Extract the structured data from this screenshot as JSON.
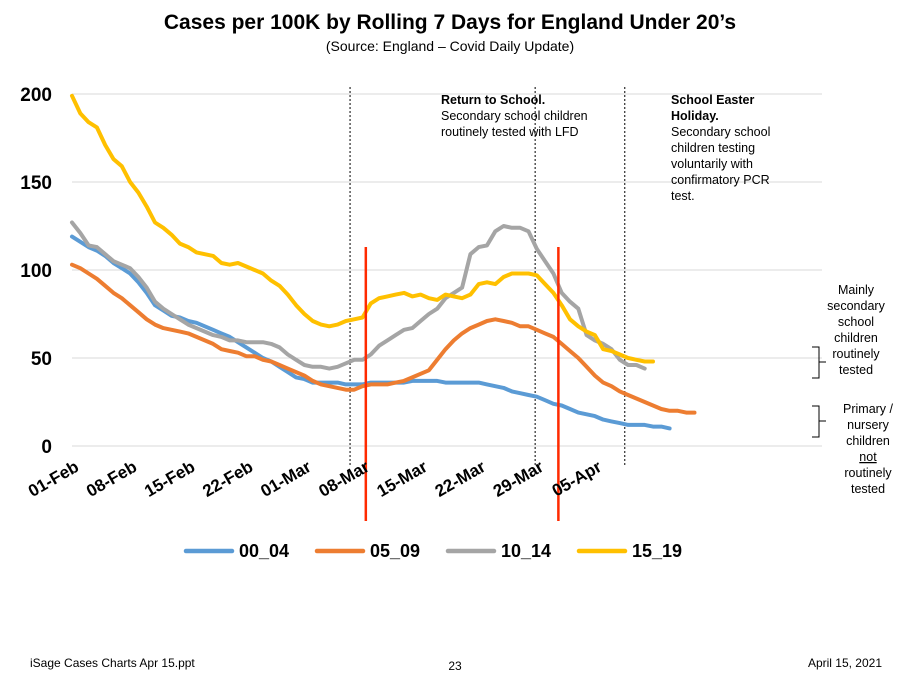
{
  "title": "Cases per 100K by Rolling 7 Days for England Under 20’s",
  "subtitle": "(Source: England – Covid Daily Update)",
  "footer": {
    "left": "iSage  Cases Charts Apr 15.ppt",
    "center": "23",
    "right": "April 15, 2021"
  },
  "annotations": {
    "school_return": {
      "lines": [
        "Return to School.",
        "Secondary school children",
        "routinely tested with LFD"
      ]
    },
    "easter": {
      "lines": [
        "School Easter",
        "Holiday.",
        "Secondary school",
        "children testing",
        "voluntarily with",
        "confirmatory PCR",
        "test."
      ]
    },
    "secondary_note": [
      "Mainly",
      "secondary",
      "school",
      "children",
      "routinely",
      "tested"
    ],
    "primary_note": [
      "Primary /",
      "nursery",
      "children",
      "not",
      "routinely",
      "tested"
    ]
  },
  "colors": {
    "00_04": "#5B9BD5",
    "05_09": "#ED7D31",
    "10_14": "#A5A5A5",
    "15_19": "#FFC000",
    "event_line": "#FF2A00"
  },
  "chart_data": {
    "type": "line",
    "title": "Cases per 100K by Rolling 7 Days for England Under 20’s",
    "xlabel": "",
    "ylabel": "",
    "ylim": [
      0,
      200
    ],
    "yticks": [
      "0",
      "50",
      "100",
      "150",
      "200"
    ],
    "xticks": [
      {
        "label": "01-Feb",
        "day": 0
      },
      {
        "label": "08-Feb",
        "day": 7
      },
      {
        "label": "15-Feb",
        "day": 14
      },
      {
        "label": "22-Feb",
        "day": 21
      },
      {
        "label": "01-Mar",
        "day": 28
      },
      {
        "label": "08-Mar",
        "day": 35
      },
      {
        "label": "15-Mar",
        "day": 42
      },
      {
        "label": "22-Mar",
        "day": 49
      },
      {
        "label": "29-Mar",
        "day": 56
      },
      {
        "label": "05-Apr",
        "day": 63
      }
    ],
    "x_start": "01-Feb",
    "x_end": "10-Apr",
    "grid": "horizontal",
    "legend_position": "bottom",
    "series": [
      {
        "name": "00_04",
        "values": [
          119,
          116,
          113,
          111,
          108,
          104,
          101,
          98,
          93,
          87,
          80,
          77,
          74,
          73,
          71,
          70,
          68,
          66,
          64,
          62,
          59,
          56,
          53,
          50,
          48,
          45,
          42,
          39,
          38,
          36,
          36,
          36,
          36,
          35,
          35,
          35,
          36,
          36,
          36,
          36,
          36,
          37,
          37,
          37,
          37,
          36,
          36,
          36,
          36,
          36,
          35,
          34,
          33,
          31,
          30,
          29,
          28,
          26,
          24,
          23,
          21,
          19,
          18,
          17,
          15,
          14,
          13,
          12,
          12,
          12,
          11,
          11,
          10
        ]
      },
      {
        "name": "05_09",
        "values": [
          103,
          101,
          98,
          95,
          91,
          87,
          84,
          80,
          76,
          72,
          69,
          67,
          66,
          65,
          64,
          62,
          60,
          58,
          55,
          54,
          53,
          51,
          51,
          49,
          48,
          46,
          44,
          42,
          40,
          37,
          35,
          34,
          33,
          32,
          32,
          34,
          35,
          35,
          35,
          36,
          37,
          39,
          41,
          43,
          49,
          55,
          60,
          64,
          67,
          69,
          71,
          72,
          71,
          70,
          68,
          68,
          66,
          64,
          62,
          58,
          54,
          50,
          45,
          40,
          36,
          34,
          31,
          29,
          27,
          25,
          23,
          21,
          20,
          20,
          19,
          19
        ]
      },
      {
        "name": "10_14",
        "values": [
          127,
          121,
          114,
          113,
          109,
          105,
          103,
          101,
          96,
          90,
          82,
          78,
          75,
          72,
          69,
          67,
          65,
          63,
          62,
          60,
          60,
          59,
          59,
          59,
          58,
          56,
          52,
          49,
          46,
          45,
          45,
          44,
          45,
          47,
          49,
          49,
          52,
          57,
          60,
          63,
          66,
          67,
          71,
          75,
          78,
          84,
          87,
          90,
          109,
          113,
          114,
          122,
          125,
          124,
          124,
          122,
          112,
          105,
          98,
          87,
          82,
          78,
          63,
          60,
          58,
          55,
          49,
          46,
          46,
          44
        ]
      },
      {
        "name": "15_19",
        "values": [
          199,
          189,
          184,
          181,
          171,
          163,
          159,
          150,
          144,
          136,
          127,
          124,
          120,
          115,
          113,
          110,
          109,
          108,
          104,
          103,
          104,
          102,
          100,
          98,
          94,
          91,
          86,
          80,
          75,
          71,
          69,
          68,
          69,
          71,
          72,
          73,
          81,
          84,
          85,
          86,
          87,
          85,
          86,
          84,
          83,
          86,
          85,
          84,
          86,
          92,
          93,
          92,
          96,
          98,
          98,
          98,
          97,
          92,
          87,
          80,
          72,
          68,
          65,
          63,
          55,
          54,
          52,
          50,
          49,
          48,
          48
        ]
      }
    ],
    "events": [
      {
        "name": "school_return",
        "day": 35.4
      },
      {
        "name": "easter_holiday",
        "day": 58.6
      }
    ],
    "period_markers": [
      {
        "day": 33.5
      },
      {
        "day": 55.8
      },
      {
        "day": 66.6
      }
    ]
  }
}
